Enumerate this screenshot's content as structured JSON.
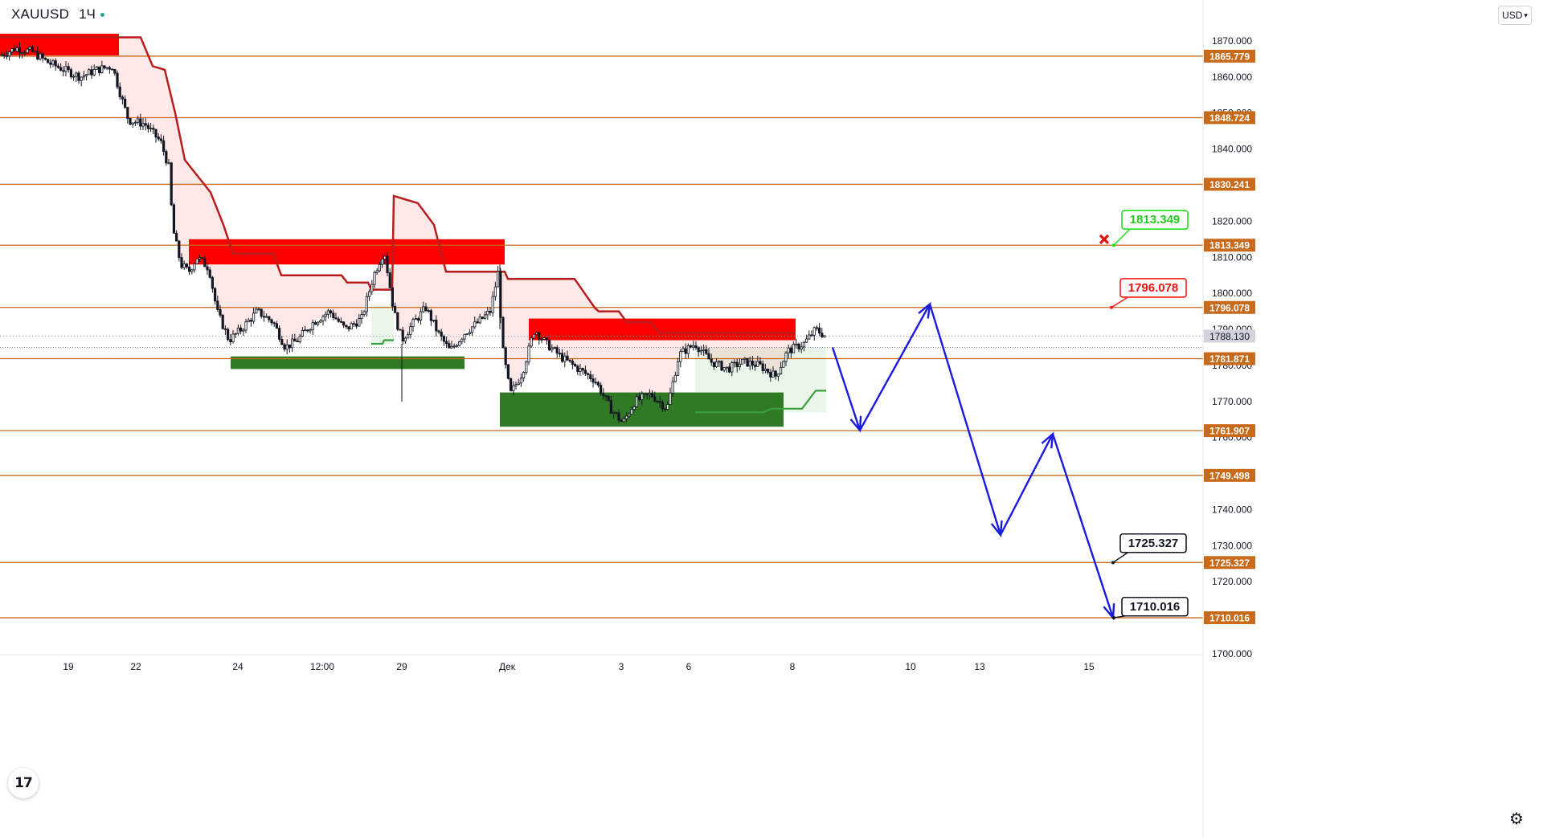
{
  "header": {
    "symbol": "XAUUSD",
    "interval": "1Ч",
    "currency": "USD"
  },
  "logo_text": "17",
  "colors": {
    "level": "#c96a1a",
    "zone_red": "#ff0000",
    "zone_green": "#317a25",
    "trail_red": "#b91c1c",
    "trail_green": "#3c9e3c",
    "projection": "#1a1ae0",
    "label_green": "#22dd22",
    "label_red": "#ff1a1a",
    "candle": "#131722"
  },
  "chart_data": {
    "type": "line",
    "title": "XAUUSD · 1Ч",
    "y_axis": {
      "range": [
        1700,
        1872
      ],
      "ticks": [
        "1870.000",
        "1860.000",
        "1850.000",
        "1840.000",
        "1830.000",
        "1820.000",
        "1810.000",
        "1800.000",
        "1790.000",
        "1780.000",
        "1770.000",
        "1760.000",
        "1750.000",
        "1740.000",
        "1730.000",
        "1720.000",
        "1710.000",
        "1700.000"
      ]
    },
    "x_axis": {
      "ticks": [
        "19",
        "22",
        "24",
        "12:00",
        "29",
        "Дек",
        "3",
        "6",
        "8",
        "10",
        "13",
        "15"
      ]
    },
    "current_price": "1788.130",
    "levels": [
      "1865.779",
      "1848.724",
      "1830.241",
      "1813.349",
      "1796.078",
      "1781.871",
      "1761.907",
      "1749.498",
      "1725.327",
      "1710.016"
    ],
    "price_series": [
      {
        "t": 0,
        "p": 1866
      },
      {
        "t": 20,
        "p": 1868
      },
      {
        "t": 40,
        "p": 1867
      },
      {
        "t": 60,
        "p": 1864
      },
      {
        "t": 80,
        "p": 1862
      },
      {
        "t": 100,
        "p": 1860
      },
      {
        "t": 120,
        "p": 1862
      },
      {
        "t": 140,
        "p": 1863
      },
      {
        "t": 150,
        "p": 1855
      },
      {
        "t": 160,
        "p": 1848
      },
      {
        "t": 180,
        "p": 1847
      },
      {
        "t": 200,
        "p": 1842
      },
      {
        "t": 210,
        "p": 1835
      },
      {
        "t": 215,
        "p": 1818
      },
      {
        "t": 225,
        "p": 1808
      },
      {
        "t": 235,
        "p": 1806
      },
      {
        "t": 245,
        "p": 1810
      },
      {
        "t": 260,
        "p": 1807
      },
      {
        "t": 270,
        "p": 1795
      },
      {
        "t": 285,
        "p": 1787
      },
      {
        "t": 300,
        "p": 1790
      },
      {
        "t": 320,
        "p": 1795
      },
      {
        "t": 340,
        "p": 1792
      },
      {
        "t": 355,
        "p": 1785
      },
      {
        "t": 370,
        "p": 1787
      },
      {
        "t": 390,
        "p": 1792
      },
      {
        "t": 410,
        "p": 1795
      },
      {
        "t": 430,
        "p": 1790
      },
      {
        "t": 450,
        "p": 1793
      },
      {
        "t": 465,
        "p": 1805
      },
      {
        "t": 478,
        "p": 1812
      },
      {
        "t": 490,
        "p": 1795
      },
      {
        "t": 500,
        "p": 1787
      },
      {
        "t": 515,
        "p": 1792
      },
      {
        "t": 530,
        "p": 1796
      },
      {
        "t": 545,
        "p": 1789
      },
      {
        "t": 560,
        "p": 1784
      },
      {
        "t": 578,
        "p": 1789
      },
      {
        "t": 595,
        "p": 1792
      },
      {
        "t": 610,
        "p": 1795
      },
      {
        "t": 620,
        "p": 1806
      },
      {
        "t": 625,
        "p": 1785
      },
      {
        "t": 635,
        "p": 1772
      },
      {
        "t": 650,
        "p": 1778
      },
      {
        "t": 665,
        "p": 1790
      },
      {
        "t": 680,
        "p": 1786
      },
      {
        "t": 700,
        "p": 1782
      },
      {
        "t": 720,
        "p": 1779
      },
      {
        "t": 740,
        "p": 1776
      },
      {
        "t": 760,
        "p": 1768
      },
      {
        "t": 775,
        "p": 1764
      },
      {
        "t": 790,
        "p": 1770
      },
      {
        "t": 810,
        "p": 1772
      },
      {
        "t": 830,
        "p": 1768
      },
      {
        "t": 845,
        "p": 1783
      },
      {
        "t": 865,
        "p": 1786
      },
      {
        "t": 885,
        "p": 1781
      },
      {
        "t": 905,
        "p": 1779
      },
      {
        "t": 925,
        "p": 1781
      },
      {
        "t": 945,
        "p": 1780
      },
      {
        "t": 965,
        "p": 1777
      },
      {
        "t": 980,
        "p": 1784
      },
      {
        "t": 1000,
        "p": 1786
      },
      {
        "t": 1015,
        "p": 1790
      },
      {
        "t": 1028,
        "p": 1788
      }
    ],
    "resistance_trail": [
      {
        "t": 0,
        "p": 1871
      },
      {
        "t": 175,
        "p": 1871
      },
      {
        "t": 190,
        "p": 1863
      },
      {
        "t": 205,
        "p": 1862
      },
      {
        "t": 218,
        "p": 1850
      },
      {
        "t": 230,
        "p": 1837
      },
      {
        "t": 262,
        "p": 1828
      },
      {
        "t": 278,
        "p": 1819
      },
      {
        "t": 290,
        "p": 1811
      },
      {
        "t": 340,
        "p": 1811
      },
      {
        "t": 350,
        "p": 1805
      },
      {
        "t": 425,
        "p": 1805
      },
      {
        "t": 432,
        "p": 1803
      },
      {
        "t": 458,
        "p": 1803
      },
      {
        "t": 462,
        "p": 1801
      },
      {
        "t": 488,
        "p": 1801
      },
      {
        "t": 490,
        "p": 1827
      },
      {
        "t": 520,
        "p": 1825
      },
      {
        "t": 540,
        "p": 1819
      },
      {
        "t": 555,
        "p": 1806
      },
      {
        "t": 628,
        "p": 1806
      },
      {
        "t": 632,
        "p": 1804
      },
      {
        "t": 715,
        "p": 1804
      },
      {
        "t": 740,
        "p": 1796
      },
      {
        "t": 745,
        "p": 1795
      },
      {
        "t": 770,
        "p": 1795
      },
      {
        "t": 780,
        "p": 1792
      },
      {
        "t": 810,
        "p": 1792
      },
      {
        "t": 820,
        "p": 1789
      },
      {
        "t": 990,
        "p": 1789
      }
    ],
    "support_trail_1": [
      {
        "t": 462,
        "p": 1786
      },
      {
        "t": 476,
        "p": 1786
      },
      {
        "t": 478,
        "p": 1787
      },
      {
        "t": 490,
        "p": 1787
      }
    ],
    "support_trail_2": [
      {
        "t": 865,
        "p": 1767
      },
      {
        "t": 950,
        "p": 1767
      },
      {
        "t": 960,
        "p": 1768
      },
      {
        "t": 998,
        "p": 1768
      },
      {
        "t": 1015,
        "p": 1773
      },
      {
        "t": 1028,
        "p": 1773
      }
    ],
    "resistance_zones": [
      {
        "t0": 0,
        "t1": 148,
        "p0": 1872,
        "p1": 1866
      },
      {
        "t0": 235,
        "t1": 628,
        "p0": 1815,
        "p1": 1808
      },
      {
        "t0": 658,
        "t1": 990,
        "p0": 1793,
        "p1": 1787
      }
    ],
    "support_zones": [
      {
        "t0": 287,
        "t1": 578,
        "p0": 1782.5,
        "p1": 1779
      },
      {
        "t0": 622,
        "t1": 975,
        "p0": 1772.5,
        "p1": 1763
      }
    ],
    "green_fills": [
      {
        "t0": 462,
        "t1": 490,
        "p0": 1797,
        "p1": 1786
      },
      {
        "t0": 865,
        "t1": 1028,
        "p0": 1785,
        "p1": 1767
      }
    ],
    "projection_path": [
      {
        "t": 1036,
        "p": 1785
      },
      {
        "t": 1070,
        "p": 1762
      },
      {
        "t": 1157,
        "p": 1797
      },
      {
        "t": 1245,
        "p": 1733
      },
      {
        "t": 1310,
        "p": 1761
      },
      {
        "t": 1385,
        "p": 1710
      }
    ],
    "annotations": [
      {
        "text": "1813.349",
        "style": "green",
        "anchor_t": 1386,
        "anchor_p": 1813.349,
        "box_t": 1437,
        "box_p": 1820.5
      },
      {
        "text": "1796.078",
        "style": "red",
        "anchor_t": 1383,
        "anchor_p": 1796.078,
        "box_t": 1435,
        "box_p": 1801.6
      },
      {
        "text": "1725.327",
        "style": "black",
        "anchor_t": 1385,
        "anchor_p": 1725.327,
        "box_t": 1435,
        "box_p": 1730.8
      },
      {
        "text": "1710.016",
        "style": "black",
        "anchor_t": 1386,
        "anchor_p": 1710.016,
        "box_t": 1437,
        "box_p": 1713.2
      }
    ],
    "marker_x": {
      "t": 1374,
      "p": 1815
    }
  }
}
